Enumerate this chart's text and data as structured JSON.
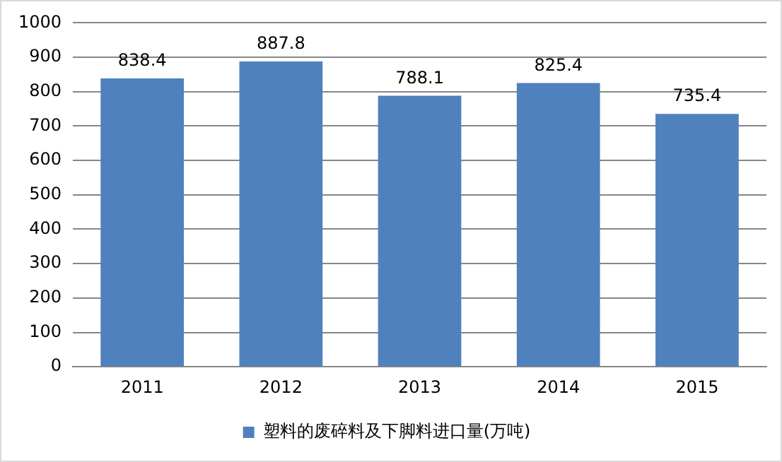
{
  "chart_data": {
    "type": "bar",
    "categories": [
      "2011",
      "2012",
      "2013",
      "2014",
      "2015"
    ],
    "series": [
      {
        "name": "塑料的废碎料及下脚料进口量(万吨)",
        "color": "#4f81bd",
        "values": [
          838.4,
          887.8,
          788.1,
          825.4,
          735.4
        ]
      }
    ],
    "ylim": [
      0,
      1000
    ],
    "yticks": [
      0,
      100,
      200,
      300,
      400,
      500,
      600,
      700,
      800,
      900,
      1000
    ],
    "grid": "y",
    "legend": "bottom",
    "data_labels": true
  }
}
